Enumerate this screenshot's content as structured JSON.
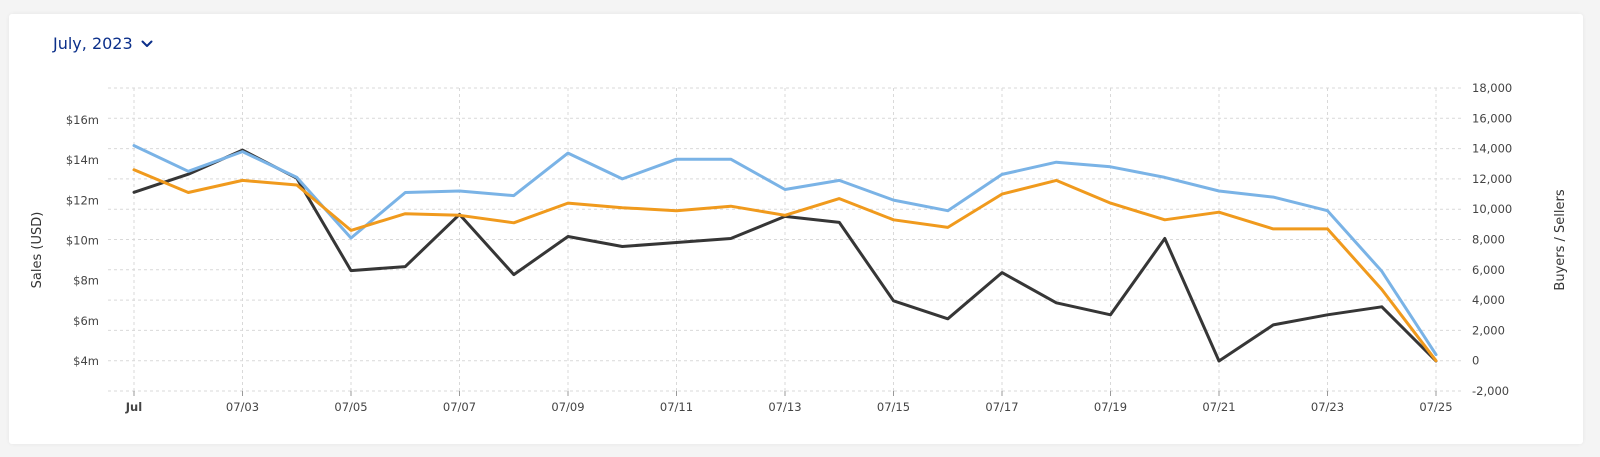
{
  "header": {
    "month_label": "July, 2023",
    "dropdown_icon": "chevron-down-icon"
  },
  "chart_data": {
    "type": "line",
    "x": [
      "Jul",
      "07/02",
      "07/03",
      "07/04",
      "07/05",
      "07/06",
      "07/07",
      "07/08",
      "07/09",
      "07/10",
      "07/11",
      "07/12",
      "07/13",
      "07/14",
      "07/15",
      "07/16",
      "07/17",
      "07/18",
      "07/19",
      "07/20",
      "07/21",
      "07/22",
      "07/23",
      "07/24",
      "07/25"
    ],
    "x_tick_labels": [
      "Jul",
      "07/03",
      "07/05",
      "07/07",
      "07/09",
      "07/11",
      "07/13",
      "07/15",
      "07/17",
      "07/19",
      "07/21",
      "07/23",
      "07/25"
    ],
    "ylabel": "Sales (USD)",
    "y2label": "Buyers / Sellers",
    "y_ticks": [
      {
        "value": 4,
        "label": "$4m"
      },
      {
        "value": 6,
        "label": "$6m"
      },
      {
        "value": 8,
        "label": "$8m"
      },
      {
        "value": 10,
        "label": "$10m"
      },
      {
        "value": 12,
        "label": "$12m"
      },
      {
        "value": 14,
        "label": "$14m"
      },
      {
        "value": 16,
        "label": "$16m"
      }
    ],
    "y2_ticks": [
      {
        "value": -2000,
        "label": "-2,000"
      },
      {
        "value": 0,
        "label": "0"
      },
      {
        "value": 2000,
        "label": "2,000"
      },
      {
        "value": 4000,
        "label": "4,000"
      },
      {
        "value": 6000,
        "label": "6,000"
      },
      {
        "value": 8000,
        "label": "8,000"
      },
      {
        "value": 10000,
        "label": "10,000"
      },
      {
        "value": 12000,
        "label": "12,000"
      },
      {
        "value": 14000,
        "label": "14,000"
      },
      {
        "value": 16000,
        "label": "16,000"
      },
      {
        "value": 18000,
        "label": "18,000"
      }
    ],
    "y2lim": [
      -2000,
      18000
    ],
    "grid": true,
    "series": [
      {
        "axis": "left",
        "color": "#363636",
        "values": [
          12.4,
          13.3,
          14.5,
          13.1,
          8.5,
          8.7,
          11.3,
          8.3,
          10.2,
          9.7,
          9.9,
          10.1,
          11.2,
          10.9,
          7.0,
          6.1,
          8.4,
          6.9,
          6.3,
          10.1,
          4.0,
          5.8,
          6.3,
          6.7,
          4.0
        ]
      },
      {
        "axis": "right",
        "color": "#7ab3e6",
        "values": [
          14200,
          12500,
          13800,
          12100,
          8100,
          11100,
          11200,
          10900,
          13700,
          12000,
          13300,
          13300,
          11300,
          11900,
          10600,
          9900,
          12300,
          13100,
          12800,
          12100,
          11200,
          10800,
          9900,
          5900,
          400
        ]
      },
      {
        "axis": "right",
        "color": "#f09a1d",
        "values": [
          12600,
          11100,
          11900,
          11600,
          8600,
          9700,
          9600,
          9100,
          10400,
          10100,
          9900,
          10200,
          9600,
          10700,
          9300,
          8800,
          11000,
          11900,
          10400,
          9300,
          9800,
          8700,
          8700,
          4700,
          0
        ]
      }
    ]
  }
}
